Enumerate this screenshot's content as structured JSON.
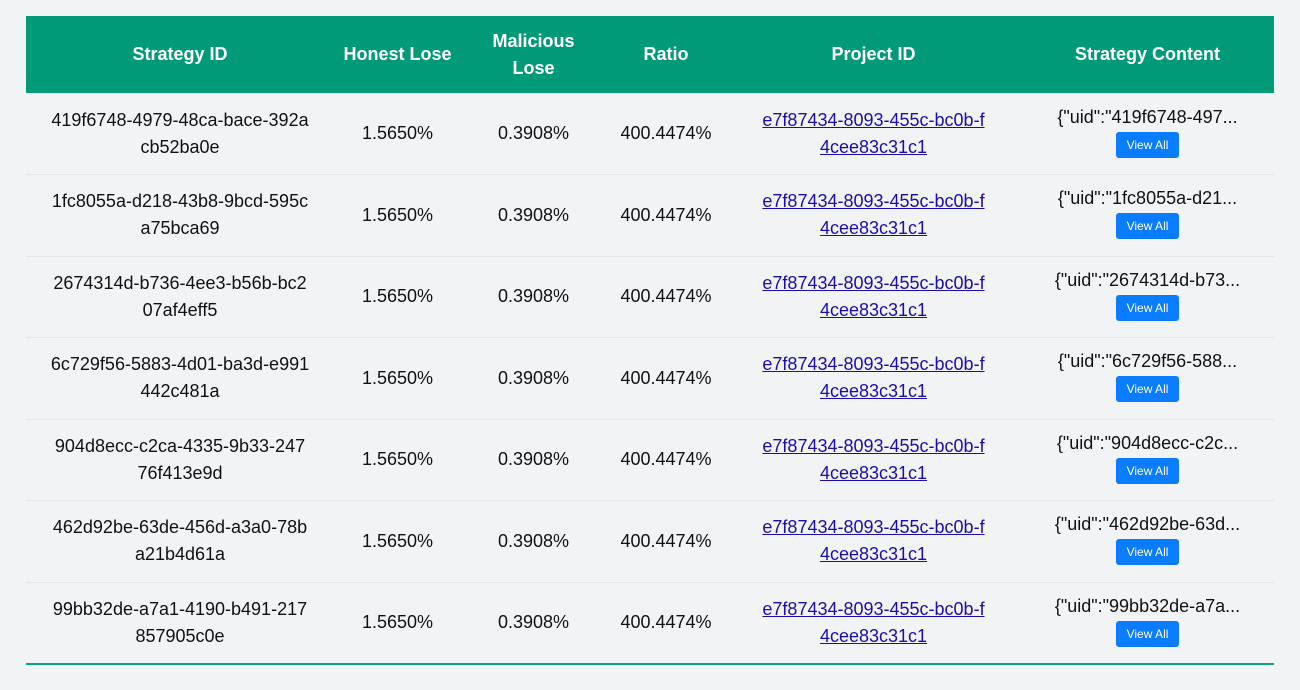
{
  "table": {
    "headers": {
      "strategy_id": "Strategy ID",
      "honest_lose": "Honest Lose",
      "malicious_lose": "Malicious Lose",
      "ratio": "Ratio",
      "project_id": "Project ID",
      "strategy_content": "Strategy Content"
    },
    "view_all_label": "View All",
    "rows": [
      {
        "strategy_id": "419f6748-4979-48ca-bace-392acb52ba0e",
        "honest_lose": "1.5650%",
        "malicious_lose": "0.3908%",
        "ratio": "400.4474%",
        "project_id": "e7f87434-8093-455c-bc0b-f4cee83c31c1",
        "content": "{\"uid\":\"419f6748-497..."
      },
      {
        "strategy_id": "1fc8055a-d218-43b8-9bcd-595ca75bca69",
        "honest_lose": "1.5650%",
        "malicious_lose": "0.3908%",
        "ratio": "400.4474%",
        "project_id": "e7f87434-8093-455c-bc0b-f4cee83c31c1",
        "content": "{\"uid\":\"1fc8055a-d21..."
      },
      {
        "strategy_id": "2674314d-b736-4ee3-b56b-bc207af4eff5",
        "honest_lose": "1.5650%",
        "malicious_lose": "0.3908%",
        "ratio": "400.4474%",
        "project_id": "e7f87434-8093-455c-bc0b-f4cee83c31c1",
        "content": "{\"uid\":\"2674314d-b73..."
      },
      {
        "strategy_id": "6c729f56-5883-4d01-ba3d-e991442c481a",
        "honest_lose": "1.5650%",
        "malicious_lose": "0.3908%",
        "ratio": "400.4474%",
        "project_id": "e7f87434-8093-455c-bc0b-f4cee83c31c1",
        "content": "{\"uid\":\"6c729f56-588..."
      },
      {
        "strategy_id": "904d8ecc-c2ca-4335-9b33-24776f413e9d",
        "honest_lose": "1.5650%",
        "malicious_lose": "0.3908%",
        "ratio": "400.4474%",
        "project_id": "e7f87434-8093-455c-bc0b-f4cee83c31c1",
        "content": "{\"uid\":\"904d8ecc-c2c..."
      },
      {
        "strategy_id": "462d92be-63de-456d-a3a0-78ba21b4d61a",
        "honest_lose": "1.5650%",
        "malicious_lose": "0.3908%",
        "ratio": "400.4474%",
        "project_id": "e7f87434-8093-455c-bc0b-f4cee83c31c1",
        "content": "{\"uid\":\"462d92be-63d..."
      },
      {
        "strategy_id": "99bb32de-a7a1-4190-b491-217857905c0e",
        "honest_lose": "1.5650%",
        "malicious_lose": "0.3908%",
        "ratio": "400.4474%",
        "project_id": "e7f87434-8093-455c-bc0b-f4cee83c31c1",
        "content": "{\"uid\":\"99bb32de-a7a..."
      }
    ]
  },
  "colors": {
    "header_bg": "#019a78",
    "page_bg": "#f2f3f5",
    "link": "#1a0dab",
    "button": "#0a7cff"
  }
}
